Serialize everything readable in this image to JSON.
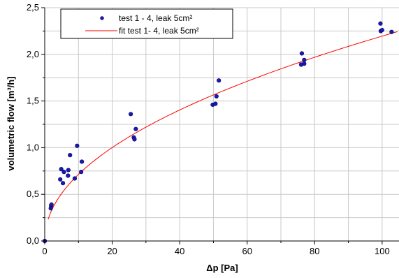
{
  "chart_data": {
    "type": "scatter",
    "xlabel": "Δp [Pa]",
    "ylabel": "volumetric flow [m³/h]",
    "xlim": [
      0,
      105
    ],
    "ylim": [
      0,
      2.5
    ],
    "x_ticks": [
      "0",
      "20",
      "40",
      "60",
      "80",
      "100"
    ],
    "y_ticks": [
      "0,0",
      "0,5",
      "1,0",
      "1,5",
      "2,0",
      "2,5"
    ],
    "grid": true,
    "legend_position": "top-left",
    "series": [
      {
        "name": "test 1 - 4, leak 5cm²",
        "type": "scatter",
        "color": "#00008b",
        "points": [
          [
            0.0,
            0.0
          ],
          [
            1.8,
            0.35
          ],
          [
            1.9,
            0.38
          ],
          [
            2.0,
            0.39
          ],
          [
            4.6,
            0.66
          ],
          [
            4.9,
            0.77
          ],
          [
            5.4,
            0.62
          ],
          [
            5.7,
            0.74
          ],
          [
            6.9,
            0.7
          ],
          [
            7.0,
            0.76
          ],
          [
            7.5,
            0.92
          ],
          [
            8.9,
            0.67
          ],
          [
            9.6,
            1.02
          ],
          [
            10.8,
            0.74
          ],
          [
            11.0,
            0.85
          ],
          [
            25.5,
            1.36
          ],
          [
            26.4,
            1.11
          ],
          [
            26.6,
            1.09
          ],
          [
            27.0,
            1.2
          ],
          [
            49.8,
            1.46
          ],
          [
            50.6,
            1.47
          ],
          [
            50.9,
            1.55
          ],
          [
            51.6,
            1.72
          ],
          [
            76.0,
            1.89
          ],
          [
            76.2,
            2.01
          ],
          [
            76.9,
            1.9
          ],
          [
            76.9,
            1.94
          ],
          [
            99.5,
            2.33
          ],
          [
            99.6,
            2.25
          ],
          [
            100.0,
            2.26
          ],
          [
            102.8,
            2.24
          ]
        ]
      },
      {
        "name": "fit test 1- 4, leak 5cm²",
        "type": "line",
        "color": "#ff0000",
        "x_range": [
          1.0,
          104.5
        ],
        "fit": {
          "form": "y = a * x^b",
          "a": 0.232,
          "b": 0.488
        }
      }
    ]
  }
}
